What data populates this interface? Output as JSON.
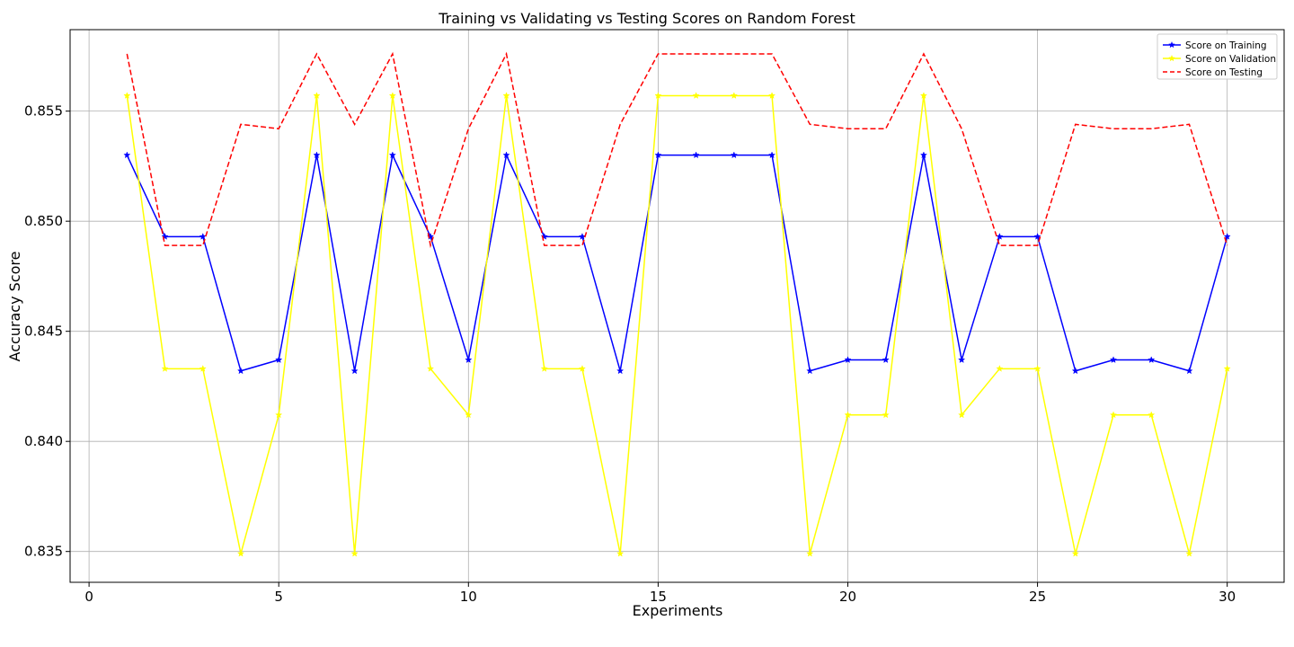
{
  "chart_data": {
    "type": "line",
    "title": "Training vs Validating vs Testing Scores on Random Forest",
    "xlabel": "Experiments",
    "ylabel": "Accuracy Score",
    "xlim": [
      -0.5,
      31.5
    ],
    "ylim": [
      0.8336,
      0.8587
    ],
    "xticks": [
      0,
      5,
      10,
      15,
      20,
      25,
      30
    ],
    "yticks": [
      0.835,
      0.84,
      0.845,
      0.85,
      0.855
    ],
    "ytick_format": 3,
    "grid": true,
    "legend_position": "top-right",
    "x": [
      1,
      2,
      3,
      4,
      5,
      6,
      7,
      8,
      9,
      10,
      11,
      12,
      13,
      14,
      15,
      16,
      17,
      18,
      19,
      20,
      21,
      22,
      23,
      24,
      25,
      26,
      27,
      28,
      29,
      30
    ],
    "series": [
      {
        "name": "Score on Training",
        "color": "#0000ff",
        "style": "solid",
        "marker": "star",
        "values": [
          0.853,
          0.8493,
          0.8493,
          0.8432,
          0.8437,
          0.853,
          0.8432,
          0.853,
          0.8493,
          0.8437,
          0.853,
          0.8493,
          0.8493,
          0.8432,
          0.853,
          0.853,
          0.853,
          0.853,
          0.8432,
          0.8437,
          0.8437,
          0.853,
          0.8437,
          0.8493,
          0.8493,
          0.8432,
          0.8437,
          0.8437,
          0.8432,
          0.8493
        ]
      },
      {
        "name": "Score on Validation",
        "color": "#ffff00",
        "style": "solid",
        "marker": "star",
        "values": [
          0.8557,
          0.8433,
          0.8433,
          0.8349,
          0.8412,
          0.8557,
          0.8349,
          0.8557,
          0.8433,
          0.8412,
          0.8557,
          0.8433,
          0.8433,
          0.8349,
          0.8557,
          0.8557,
          0.8557,
          0.8557,
          0.8349,
          0.8412,
          0.8412,
          0.8557,
          0.8412,
          0.8433,
          0.8433,
          0.8349,
          0.8412,
          0.8412,
          0.8349,
          0.8433
        ]
      },
      {
        "name": "Score on Testing",
        "color": "#ff0000",
        "style": "dashed",
        "marker": "none",
        "values": [
          0.8576,
          0.8489,
          0.8489,
          0.8544,
          0.8542,
          0.8576,
          0.8544,
          0.8576,
          0.8489,
          0.8542,
          0.8576,
          0.8489,
          0.8489,
          0.8544,
          0.8576,
          0.8576,
          0.8576,
          0.8576,
          0.8544,
          0.8542,
          0.8542,
          0.8576,
          0.8542,
          0.8489,
          0.8489,
          0.8544,
          0.8542,
          0.8542,
          0.8544,
          0.8489
        ]
      }
    ]
  }
}
